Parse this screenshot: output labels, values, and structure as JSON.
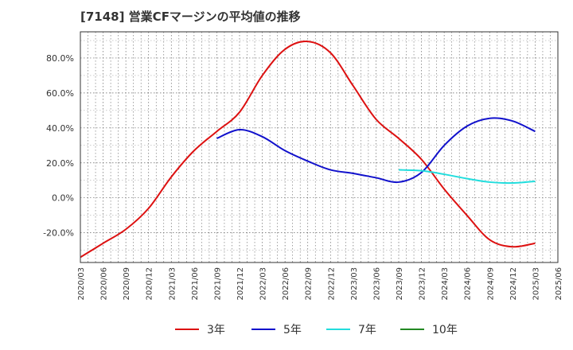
{
  "chart_data": {
    "type": "line",
    "title": "[7148]  営業CFマージンの平均値の推移",
    "xlabel": "",
    "ylabel": "",
    "ylim": [
      -37,
      95
    ],
    "yticks": [
      80,
      60,
      40,
      20,
      0,
      -20
    ],
    "ytick_labels": [
      "80.0%",
      "60.0%",
      "40.0%",
      "20.0%",
      "0.0%",
      "-20.0%"
    ],
    "x_tick_labels": [
      "2020/03",
      "2020/06",
      "2020/09",
      "2020/12",
      "2021/03",
      "2021/06",
      "2021/09",
      "2021/12",
      "2022/03",
      "2022/06",
      "2022/09",
      "2022/12",
      "2023/03",
      "2023/06",
      "2023/09",
      "2023/12",
      "2024/03",
      "2024/06",
      "2024/09",
      "2024/12",
      "2025/03",
      "2025/06"
    ],
    "grid": true,
    "legend_position": "bottom",
    "series": [
      {
        "name": "3年",
        "color": "#dd1111",
        "x": [
          "2020/03",
          "2020/06",
          "2020/09",
          "2020/12",
          "2021/03",
          "2021/06",
          "2021/09",
          "2021/12",
          "2022/03",
          "2022/06",
          "2022/09",
          "2022/12",
          "2023/03",
          "2023/06",
          "2023/09",
          "2023/12",
          "2024/03",
          "2024/06",
          "2024/09",
          "2024/12",
          "2025/03"
        ],
        "values": [
          -34,
          -26,
          -18,
          -6,
          12,
          27,
          38,
          49,
          70,
          85,
          89.5,
          83,
          64,
          45,
          34,
          22,
          5,
          -10,
          -24,
          -28,
          -26
        ]
      },
      {
        "name": "5年",
        "color": "#1111cc",
        "x": [
          "2021/09",
          "2021/12",
          "2022/03",
          "2022/06",
          "2022/09",
          "2022/12",
          "2023/03",
          "2023/06",
          "2023/09",
          "2023/12",
          "2024/03",
          "2024/06",
          "2024/09",
          "2024/12",
          "2025/03"
        ],
        "values": [
          34,
          39,
          35,
          27,
          21,
          16,
          14,
          11.5,
          9,
          14.5,
          30,
          41,
          45.5,
          44,
          38
        ]
      },
      {
        "name": "7年",
        "color": "#22dddd",
        "x": [
          "2023/09",
          "2023/12",
          "2024/03",
          "2024/06",
          "2024/09",
          "2024/12",
          "2025/03"
        ],
        "values": [
          16,
          15.5,
          13.5,
          11,
          9,
          8.5,
          9.5
        ]
      },
      {
        "name": "10年",
        "color": "#228822",
        "x": [],
        "values": []
      }
    ]
  }
}
